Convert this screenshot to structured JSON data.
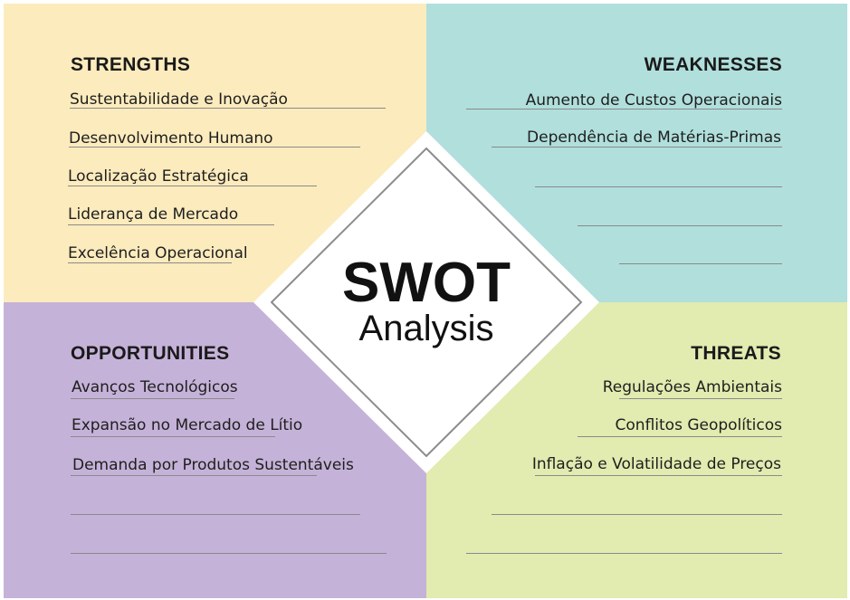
{
  "colors": {
    "strengths_bg": "#fcebbd",
    "weaknesses_bg": "#b0dfdc",
    "opportunities_bg": "#c5b2d8",
    "threats_bg": "#e2ebb0",
    "center_bg": "#ffffff",
    "diamond_border": "#8c8c8c"
  },
  "center": {
    "title": "SWOT",
    "subtitle": "Analysis"
  },
  "strengths": {
    "heading": "STRENGTHS",
    "items": [
      "Sustentabilidade e Inovação",
      "Desenvolvimento Humano",
      "Localização Estratégica",
      "Liderança de Mercado",
      "Excelência Operacional"
    ]
  },
  "weaknesses": {
    "heading": "WEAKNESSES",
    "items": [
      "Aumento de Custos Operacionais",
      "Dependência de Matérias-Primas",
      "",
      "",
      ""
    ]
  },
  "opportunities": {
    "heading": "OPPORTUNITIES",
    "items": [
      "Avanços Tecnológicos",
      "Expansão no Mercado de Lítio",
      "Demanda por Produtos Sustentáveis",
      "",
      ""
    ]
  },
  "threats": {
    "heading": "THREATS",
    "items": [
      "Regulações Ambientais",
      "Conflitos Geopolíticos",
      "Inflação e Volatilidade de Preços",
      "",
      ""
    ]
  }
}
